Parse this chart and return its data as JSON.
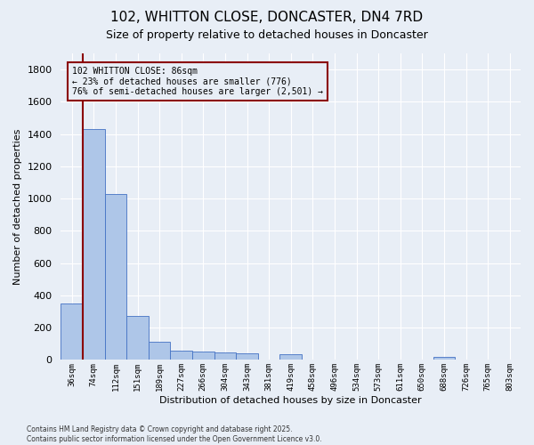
{
  "title": "102, WHITTON CLOSE, DONCASTER, DN4 7RD",
  "subtitle": "Size of property relative to detached houses in Doncaster",
  "xlabel": "Distribution of detached houses by size in Doncaster",
  "ylabel": "Number of detached properties",
  "annotation_line1": "102 WHITTON CLOSE: 86sqm",
  "annotation_line2": "← 23% of detached houses are smaller (776)",
  "annotation_line3": "76% of semi-detached houses are larger (2,501) →",
  "footer_line1": "Contains HM Land Registry data © Crown copyright and database right 2025.",
  "footer_line2": "Contains public sector information licensed under the Open Government Licence v3.0.",
  "bin_labels": [
    "36sqm",
    "74sqm",
    "112sqm",
    "151sqm",
    "189sqm",
    "227sqm",
    "266sqm",
    "304sqm",
    "343sqm",
    "381sqm",
    "419sqm",
    "458sqm",
    "496sqm",
    "534sqm",
    "573sqm",
    "611sqm",
    "650sqm",
    "688sqm",
    "726sqm",
    "765sqm",
    "803sqm"
  ],
  "bar_values": [
    350,
    1430,
    1030,
    270,
    110,
    55,
    50,
    45,
    40,
    0,
    35,
    0,
    0,
    0,
    0,
    0,
    0,
    20,
    0,
    0,
    0
  ],
  "bar_color": "#aec6e8",
  "bar_edge_color": "#4472c4",
  "vline_color": "#8b0000",
  "annotation_box_color": "#8b0000",
  "background_color": "#e8eef6",
  "grid_color": "#ffffff",
  "ylim": [
    0,
    1900
  ],
  "yticks": [
    0,
    200,
    400,
    600,
    800,
    1000,
    1200,
    1400,
    1600,
    1800
  ],
  "vline_x_bar_index": 1,
  "figsize": [
    6.0,
    5.0
  ],
  "dpi": 100
}
